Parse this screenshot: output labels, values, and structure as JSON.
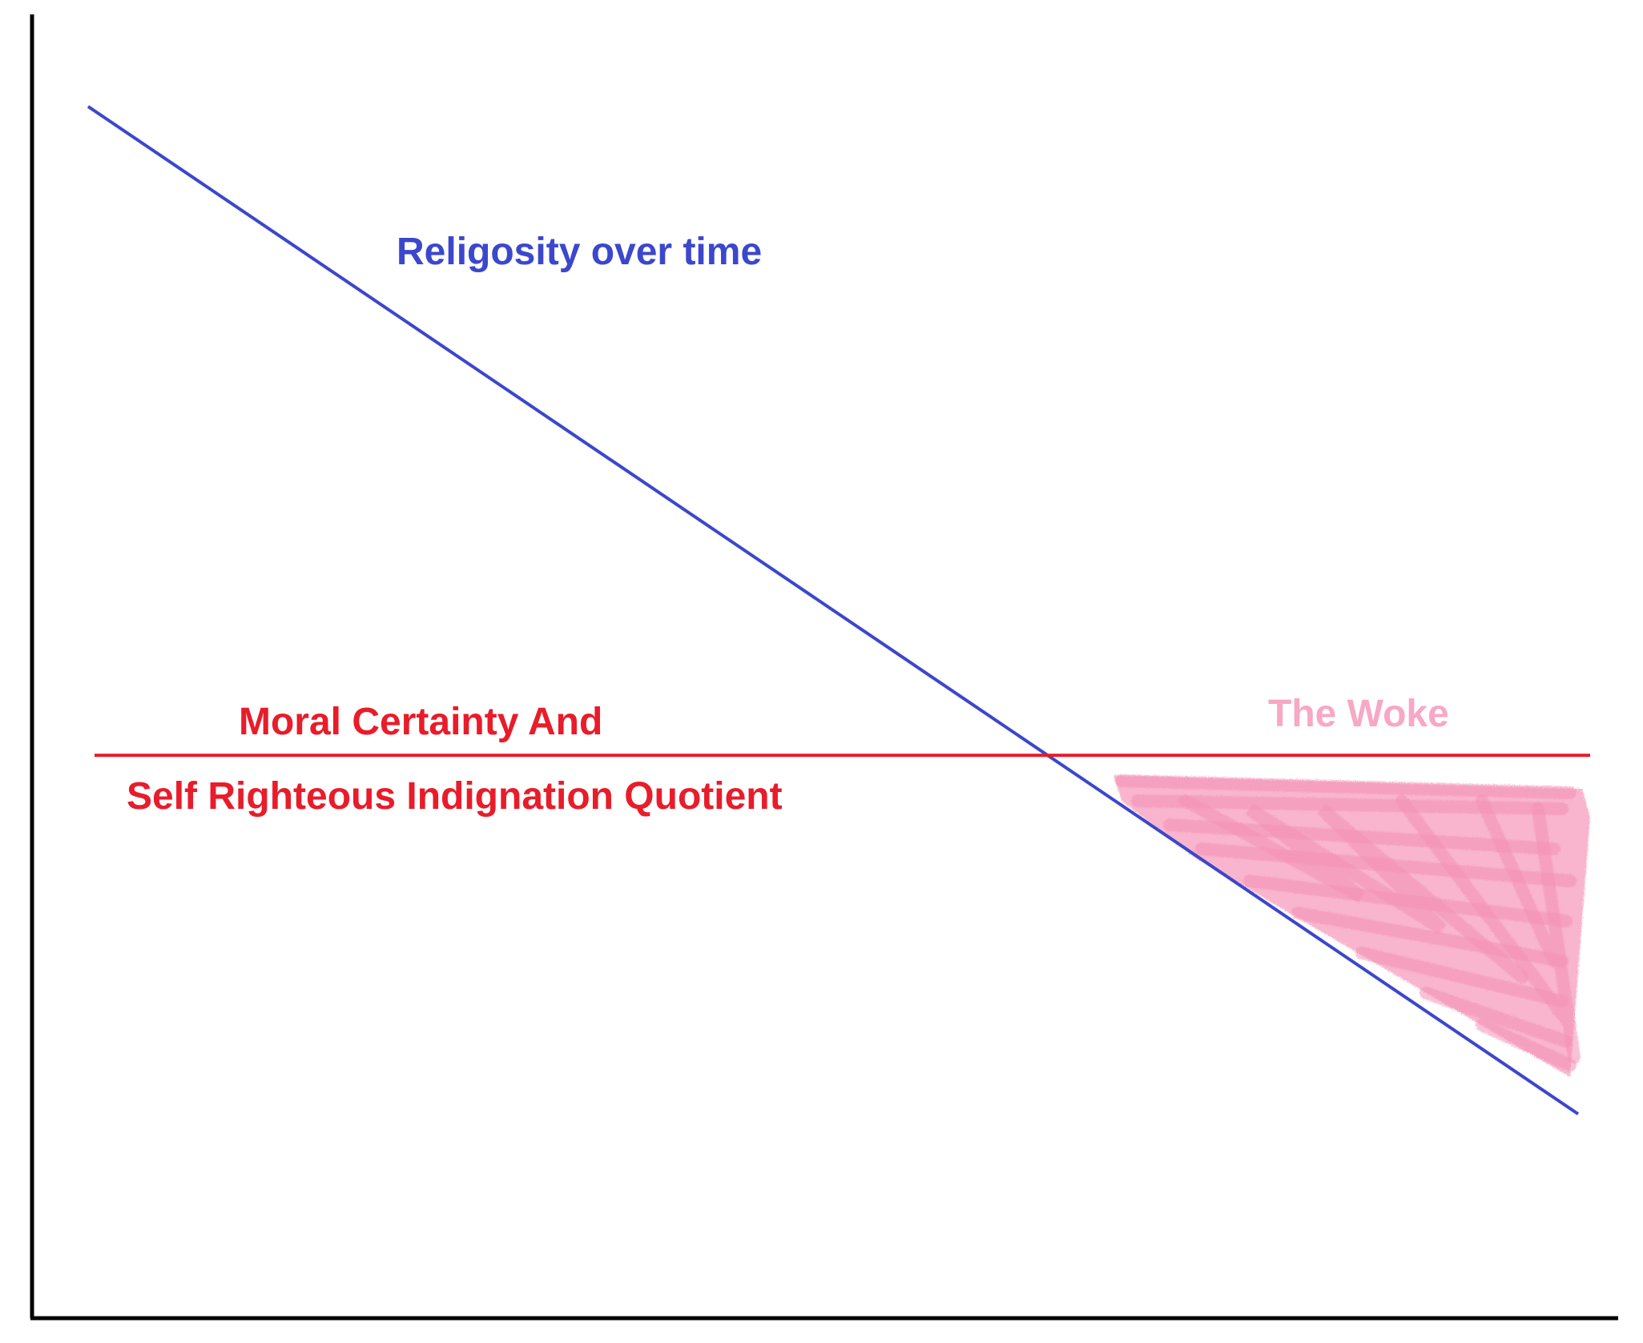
{
  "chart_data": {
    "type": "line",
    "title": "",
    "xlabel": "",
    "ylabel": "",
    "grid": false,
    "legend": "none",
    "series": [
      {
        "name": "Religosity over time",
        "color": "#3b47cc",
        "x": [
          0,
          1
        ],
        "y": [
          1.0,
          0.0
        ]
      },
      {
        "name": "Moral Certainty And Self Righteous Indignation Quotient",
        "color": "#e81c2a",
        "x": [
          0,
          1
        ],
        "y": [
          0.36,
          0.36
        ]
      }
    ],
    "annotations": [
      {
        "text": "Religosity over time",
        "color": "#3b47cc"
      },
      {
        "text_line1": "Moral Certainty And",
        "text_line2": "Self Righteous Indignation Quotient",
        "color": "#e81c2a"
      },
      {
        "text": "The Woke",
        "color": "#f7a8c4",
        "shaded_region": "between the two lines after they cross"
      }
    ]
  }
}
